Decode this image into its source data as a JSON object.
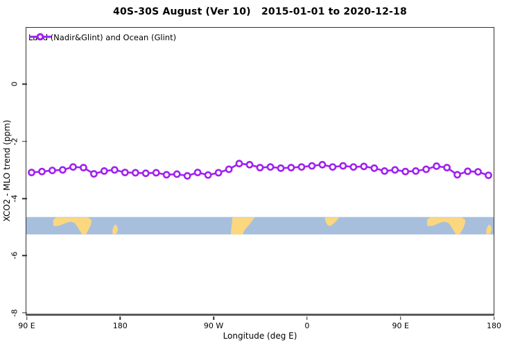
{
  "title": "40S-30S August (Ver 10)   2015-01-01 to 2020-12-18",
  "legend": {
    "label": "Land (Nadir&Glint) and Ocean (Glint)"
  },
  "colors": {
    "series": "#A020F0",
    "marker_fill": "#ffffff",
    "ocean": "#A7BFDD",
    "land": "#FBD780",
    "axis": "#2f2f2f",
    "baseline": "#5A5A5A",
    "text": "#000000"
  },
  "chart_data": {
    "type": "line",
    "title": "40S-30S August (Ver 10)   2015-01-01 to 2020-12-18",
    "xlabel": "Longitude (deg E)",
    "ylabel": "XCO2 - MLO trend (ppm)",
    "xlim": [
      90,
      540
    ],
    "ylim": [
      -8.04,
      1.96
    ],
    "grid": false,
    "legend_position": "top-left-inside",
    "x_ticks": [
      {
        "value": 90,
        "label": "90 E"
      },
      {
        "value": 180,
        "label": "180"
      },
      {
        "value": 270,
        "label": "90 W"
      },
      {
        "value": 360,
        "label": "0"
      },
      {
        "value": 450,
        "label": "90 E"
      },
      {
        "value": 540,
        "label": "180"
      }
    ],
    "y_ticks": [
      {
        "value": 0,
        "label": "0"
      },
      {
        "value": -2,
        "label": "-2"
      },
      {
        "value": -4,
        "label": "-4"
      },
      {
        "value": -6,
        "label": "-6"
      },
      {
        "value": -8,
        "label": "-8"
      }
    ],
    "series": [
      {
        "name": "Land (Nadir&Glint) and Ocean (Glint)",
        "marker": "open-circle",
        "x": [
          95,
          105,
          115,
          125,
          135,
          145,
          155,
          165,
          175,
          185,
          195,
          205,
          215,
          225,
          235,
          245,
          255,
          265,
          275,
          285,
          295,
          305,
          315,
          325,
          335,
          345,
          355,
          365,
          375,
          385,
          395,
          405,
          415,
          425,
          435,
          445,
          455,
          465,
          475,
          485,
          495,
          505,
          515,
          525,
          535
        ],
        "values": [
          -3.1,
          -3.07,
          -3.03,
          -3.01,
          -2.91,
          -2.93,
          -3.15,
          -3.05,
          -3.01,
          -3.1,
          -3.11,
          -3.13,
          -3.11,
          -3.18,
          -3.16,
          -3.22,
          -3.1,
          -3.19,
          -3.11,
          -2.99,
          -2.79,
          -2.83,
          -2.93,
          -2.91,
          -2.95,
          -2.93,
          -2.91,
          -2.87,
          -2.83,
          -2.91,
          -2.87,
          -2.91,
          -2.89,
          -2.95,
          -3.05,
          -3.01,
          -3.07,
          -3.05,
          -2.99,
          -2.88,
          -2.93,
          -3.18,
          -3.06,
          -3.08,
          -3.2
        ]
      }
    ],
    "map_band": {
      "description": "world coastline strip for 40S-30S latitude band",
      "y_top": -4.66,
      "y_bottom": -5.27,
      "regions": [
        {
          "name": "australia",
          "shift": 0,
          "points": [
            [
              116,
              0.5
            ],
            [
              116,
              0.15
            ],
            [
              118.5,
              0.02
            ],
            [
              149.5,
              0.02
            ],
            [
              152.8,
              0.18
            ],
            [
              152.2,
              0.42
            ],
            [
              150.5,
              0.66
            ],
            [
              148.6,
              0.85
            ],
            [
              147.2,
              1.0
            ],
            [
              143.8,
              1.0
            ],
            [
              141.8,
              0.82
            ],
            [
              139.2,
              0.56
            ],
            [
              136.8,
              0.36
            ],
            [
              133.5,
              0.27
            ],
            [
              130,
              0.3
            ],
            [
              127,
              0.36
            ],
            [
              124,
              0.44
            ],
            [
              121.2,
              0.5
            ],
            [
              118.4,
              0.52
            ]
          ]
        },
        {
          "name": "new-zealand",
          "shift": 0,
          "points": [
            [
              173.2,
              1.0
            ],
            [
              172.8,
              0.78
            ],
            [
              174,
              0.55
            ],
            [
              175.6,
              0.42
            ],
            [
              177.3,
              0.52
            ],
            [
              178.2,
              0.72
            ],
            [
              177,
              0.92
            ],
            [
              175.2,
              1.0
            ]
          ]
        },
        {
          "name": "south-america",
          "shift": 0,
          "points": [
            [
              288.5,
              0.02
            ],
            [
              310,
              0.02
            ],
            [
              307.5,
              0.2
            ],
            [
              305,
              0.42
            ],
            [
              302.5,
              0.58
            ],
            [
              300,
              0.78
            ],
            [
              298.3,
              1.0
            ],
            [
              286.8,
              1.0
            ],
            [
              287.4,
              0.6
            ],
            [
              288,
              0.3
            ]
          ]
        },
        {
          "name": "south-africa",
          "shift": 0,
          "points": [
            [
              377.6,
              0.02
            ],
            [
              391,
              0.02
            ],
            [
              389.6,
              0.16
            ],
            [
              387.2,
              0.3
            ],
            [
              384.8,
              0.44
            ],
            [
              382.2,
              0.52
            ],
            [
              379.9,
              0.46
            ],
            [
              378.4,
              0.3
            ],
            [
              377.7,
              0.15
            ]
          ]
        },
        {
          "name": "australia-wrap",
          "shift": 360,
          "points": [
            [
              116,
              0.5
            ],
            [
              116,
              0.15
            ],
            [
              118.5,
              0.02
            ],
            [
              149.5,
              0.02
            ],
            [
              152.8,
              0.18
            ],
            [
              152.2,
              0.42
            ],
            [
              150.5,
              0.66
            ],
            [
              148.6,
              0.85
            ],
            [
              147.2,
              1.0
            ],
            [
              143.8,
              1.0
            ],
            [
              141.8,
              0.82
            ],
            [
              139.2,
              0.56
            ],
            [
              136.8,
              0.36
            ],
            [
              133.5,
              0.27
            ],
            [
              130,
              0.3
            ],
            [
              127,
              0.36
            ],
            [
              124,
              0.44
            ],
            [
              121.2,
              0.5
            ],
            [
              118.4,
              0.52
            ]
          ]
        },
        {
          "name": "new-zealand-wrap",
          "shift": 360,
          "points": [
            [
              173.2,
              1.0
            ],
            [
              172.8,
              0.78
            ],
            [
              174,
              0.55
            ],
            [
              175.6,
              0.42
            ],
            [
              177.3,
              0.52
            ],
            [
              178.2,
              0.72
            ],
            [
              177,
              0.92
            ],
            [
              175.2,
              1.0
            ]
          ]
        }
      ]
    }
  }
}
